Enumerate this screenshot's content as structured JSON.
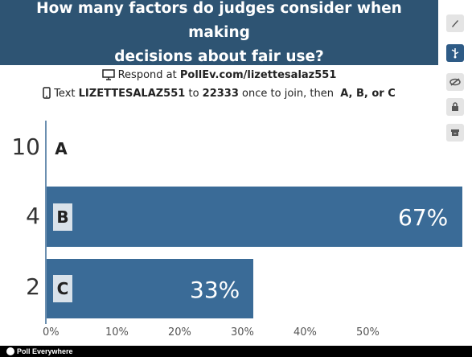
{
  "question": {
    "line1": "How many factors do judges consider when making",
    "line2": "decisions about fair use?"
  },
  "respond": {
    "web_prefix": "Respond at",
    "web_url": "PollEv.com/lizettesalaz551",
    "text_prefix": "Text",
    "text_code": "LIZETTESALAZ551",
    "text_to": "to",
    "text_number": "22333",
    "text_suffix": "once to join, then",
    "text_options": "A, B, or C"
  },
  "options": [
    {
      "number": "10",
      "letter": "A",
      "percent": 0,
      "percent_label": ""
    },
    {
      "number": "4",
      "letter": "B",
      "percent": 67,
      "percent_label": "67%"
    },
    {
      "number": "2",
      "letter": "C",
      "percent": 33,
      "percent_label": "33%"
    }
  ],
  "axis_ticks": [
    "0%",
    "10%",
    "20%",
    "30%",
    "40%",
    "50%"
  ],
  "toolbar": {
    "icons": [
      "pencil-icon",
      "usb-icon",
      "eye-hide-icon",
      "lock-icon",
      "archive-icon"
    ]
  },
  "footer": {
    "brand": "Poll Everywhere"
  },
  "colors": {
    "title_bg": "#2e5473",
    "bar": "#3a6b97",
    "footer_bg": "#000000"
  }
}
